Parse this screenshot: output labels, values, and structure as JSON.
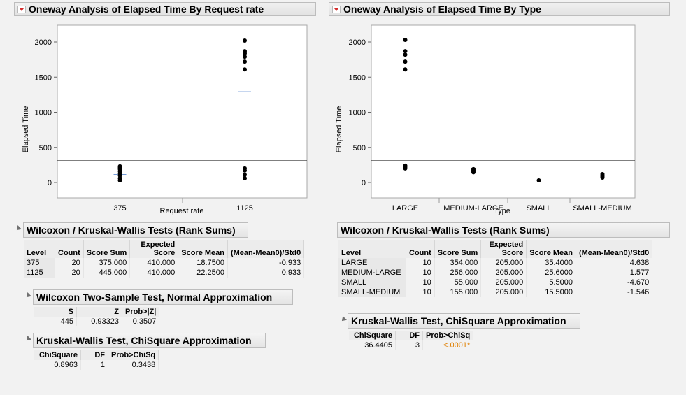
{
  "left_panel": {
    "title": "Oneway Analysis of Elapsed Time By Request rate",
    "ylabel": "Elapsed Time",
    "xlabel": "Request rate",
    "y_ticks": [
      "2000",
      "1500",
      "1000",
      "500",
      "0"
    ],
    "categories": [
      "375",
      "1125"
    ],
    "wilcoxon": {
      "title": "Wilcoxon / Kruskal-Wallis Tests (Rank Sums)",
      "headers": [
        "Level",
        "Count",
        "Score Sum",
        "Expected Score",
        "Score Mean",
        "(Mean-Mean0)/Std0"
      ],
      "rows": [
        [
          "375",
          "20",
          "375.000",
          "410.000",
          "18.7500",
          "-0.933"
        ],
        [
          "1125",
          "20",
          "445.000",
          "410.000",
          "22.2500",
          "0.933"
        ]
      ]
    },
    "two_sample": {
      "title": "Wilcoxon Two-Sample Test, Normal Approximation",
      "headers": [
        "S",
        "Z",
        "Prob>|Z|"
      ],
      "values": [
        "445",
        "0.93323",
        "0.3507"
      ]
    },
    "kruskal": {
      "title": "Kruskal-Wallis Test, ChiSquare Approximation",
      "headers": [
        "ChiSquare",
        "DF",
        "Prob>ChiSq"
      ],
      "values": [
        "0.8963",
        "1",
        "0.3438"
      ]
    }
  },
  "right_panel": {
    "title": "Oneway Analysis of Elapsed Time By Type",
    "ylabel": "Elapsed Time",
    "xlabel": "Type",
    "y_ticks": [
      "2000",
      "1500",
      "1000",
      "500",
      "0"
    ],
    "categories": [
      "LARGE",
      "MEDIUM-LARGE",
      "SMALL",
      "SMALL-MEDIUM"
    ],
    "wilcoxon": {
      "title": "Wilcoxon / Kruskal-Wallis Tests (Rank Sums)",
      "headers": [
        "Level",
        "Count",
        "Score Sum",
        "Expected Score",
        "Score Mean",
        "(Mean-Mean0)/Std0"
      ],
      "rows": [
        [
          "LARGE",
          "10",
          "354.000",
          "205.000",
          "35.4000",
          "4.638"
        ],
        [
          "MEDIUM-LARGE",
          "10",
          "256.000",
          "205.000",
          "25.6000",
          "1.577"
        ],
        [
          "SMALL",
          "10",
          "55.000",
          "205.000",
          "5.5000",
          "-4.670"
        ],
        [
          "SMALL-MEDIUM",
          "10",
          "155.000",
          "205.000",
          "15.5000",
          "-1.546"
        ]
      ]
    },
    "kruskal": {
      "title": "Kruskal-Wallis Test, ChiSquare Approximation",
      "headers": [
        "ChiSquare",
        "DF",
        "Prob>ChiSq"
      ],
      "values": [
        "36.4405",
        "3",
        "<.0001*"
      ]
    }
  },
  "colors": {
    "highlight_pvalue": "#e07f00",
    "mean_line": "#1f5fbf",
    "points": "#000000"
  },
  "chart_data": [
    {
      "type": "scatter",
      "xlabel": "Request rate",
      "ylabel": "Elapsed Time",
      "ylim": [
        -100,
        2200
      ],
      "categories": [
        "375",
        "1125"
      ],
      "grand_mean": 310,
      "group_means": [
        110,
        1290
      ],
      "points": [
        {
          "x": "375",
          "y": [
            30,
            60,
            100,
            130,
            160,
            190,
            210,
            230
          ]
        },
        {
          "x": "1125",
          "y": [
            2020,
            1870,
            1840,
            1790,
            1720,
            1610,
            200,
            170,
            110,
            60
          ]
        }
      ]
    },
    {
      "type": "scatter",
      "xlabel": "Type",
      "ylabel": "Elapsed Time",
      "ylim": [
        -100,
        2200
      ],
      "categories": [
        "LARGE",
        "MEDIUM-LARGE",
        "SMALL",
        "SMALL-MEDIUM"
      ],
      "grand_mean": 310,
      "points": [
        {
          "x": "LARGE",
          "y": [
            2030,
            1870,
            1820,
            1720,
            1610,
            240,
            220,
            200
          ]
        },
        {
          "x": "MEDIUM-LARGE",
          "y": [
            190,
            175,
            160,
            145
          ]
        },
        {
          "x": "SMALL",
          "y": [
            30
          ]
        },
        {
          "x": "SMALL-MEDIUM",
          "y": [
            120,
            100,
            85,
            70
          ]
        }
      ]
    }
  ]
}
